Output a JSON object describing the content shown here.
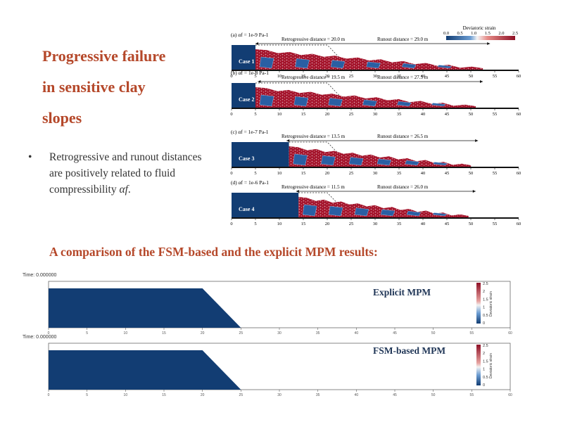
{
  "title": {
    "lines": [
      "Progressive failure",
      "in sensitive clay",
      "slopes"
    ]
  },
  "bullet": {
    "marker": "•",
    "text": "Retrogressive and runout distances are positively related to fluid compressibility",
    "symbol": "αf",
    "suffix": "."
  },
  "figure": {
    "colorbar": {
      "title": "Deviatoric strain",
      "ticks": [
        "0.0",
        "0.5",
        "1.0",
        "1.5",
        "2.0",
        "2.5"
      ]
    },
    "x_ticks": [
      "0",
      "5",
      "10",
      "15",
      "20",
      "25",
      "30",
      "35",
      "40",
      "45",
      "50",
      "55",
      "60"
    ],
    "cases": [
      {
        "label": "(a) αf = 1e-9 Pa-1",
        "case": "Case 1",
        "retro": "Retrogressive distance = 20.0 m",
        "runout": "Runout distance = 29.0 m",
        "retro_m": 20.0,
        "runout_m": 29.0
      },
      {
        "label": "(b) αf = 1e-8 Pa-1",
        "case": "Case  2",
        "retro": "Retrogressive distance = 19.5 m",
        "runout": "Runout distance = 27.5 m",
        "retro_m": 19.5,
        "runout_m": 27.5
      },
      {
        "label": "(c) αf = 1e-7 Pa-1",
        "case": "Case 3",
        "retro": "Retrogressive distance = 13.5 m",
        "runout": "Runout distance = 26.5 m",
        "retro_m": 13.5,
        "runout_m": 26.5
      },
      {
        "label": "(d) αf = 1e-6 Pa-1",
        "case": "Case 4",
        "retro": "Retrogressive distance = 11.5 m",
        "runout": "Runout distance = 26.0 m",
        "retro_m": 11.5,
        "runout_m": 26.0
      }
    ]
  },
  "comparison": {
    "heading": "A comparison of the FSM-based and the explicit MPM results:",
    "panels": [
      {
        "time": "Time: 0.000000",
        "label": "Explicit MPM"
      },
      {
        "time": "Time: 0.000000",
        "label": "FSM-based MPM"
      }
    ],
    "x_ticks": [
      "0",
      "5",
      "10",
      "15",
      "20",
      "25",
      "30",
      "35",
      "40",
      "45",
      "50",
      "55",
      "60"
    ],
    "colorbar": {
      "title": "Deviatoric strain",
      "ticks": [
        "2.5",
        "2",
        "1.5",
        "1",
        "0.5",
        "0"
      ]
    }
  },
  "colors": {
    "accent": "#b5482a",
    "clay": "#123d73",
    "strain_high": "#a3122a"
  }
}
